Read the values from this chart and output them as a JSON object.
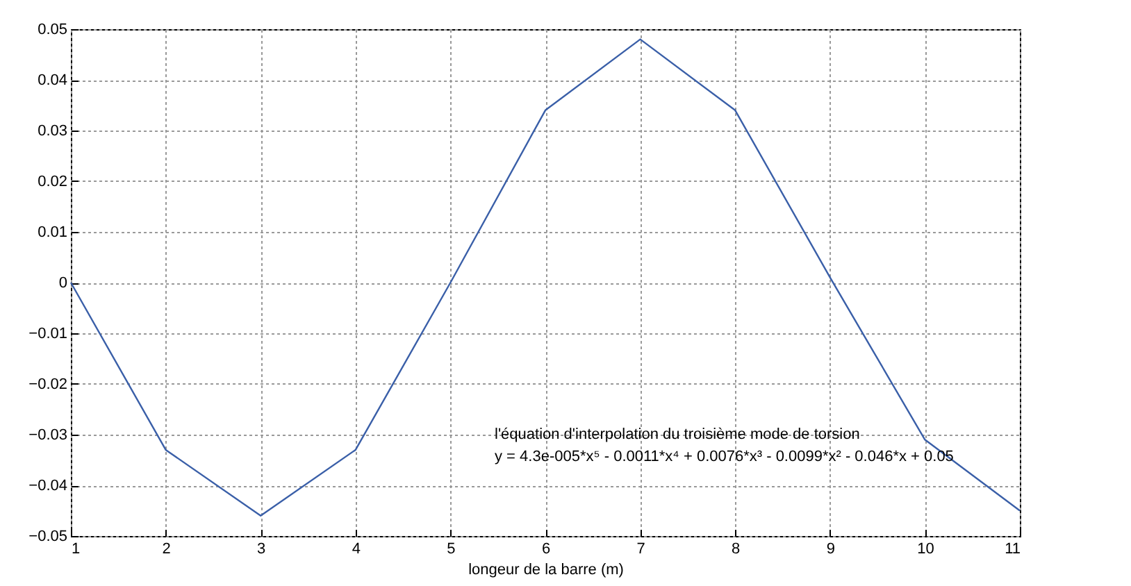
{
  "chart_data": {
    "type": "line",
    "xlabel": "longeur de la barre (m)",
    "x": [
      1,
      2,
      3,
      4,
      5,
      6,
      7,
      8,
      9,
      10,
      11
    ],
    "series": [
      {
        "color": "#3a5fa8",
        "values": [
          0,
          -0.033,
          -0.046,
          -0.033,
          0,
          0.034,
          0.048,
          0.034,
          0.001,
          -0.031,
          -0.045
        ]
      }
    ],
    "xlim": [
      1,
      11
    ],
    "xticks": [
      1,
      2,
      3,
      4,
      5,
      6,
      7,
      8,
      9,
      10,
      11
    ],
    "ylim": [
      -0.05,
      0.05
    ],
    "yticks": [
      -0.05,
      -0.04,
      -0.03,
      -0.02,
      -0.01,
      0,
      0.01,
      0.02,
      0.03,
      0.04,
      0.05
    ],
    "grid": true,
    "line_style": "solid",
    "annotations": [
      "l'équation d'interpolation du troisième mode de torsion",
      "y = 4.3e-005*x⁵ - 0.0011*x⁴ + 0.0076*x³ - 0.0099*x² - 0.046*x + 0.05"
    ]
  }
}
